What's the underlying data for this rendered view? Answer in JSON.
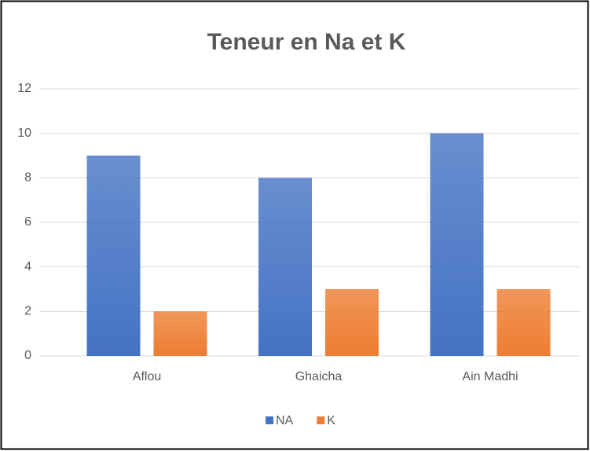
{
  "chart_data": {
    "type": "bar",
    "title": "Teneur en Na et K",
    "categories": [
      "Aflou",
      "Ghaicha",
      "Ain Madhi"
    ],
    "series": [
      {
        "name": "NA",
        "color": "#4472c4",
        "values": [
          9,
          8,
          10
        ]
      },
      {
        "name": "K",
        "color": "#ed7d31",
        "values": [
          2,
          3,
          3
        ]
      }
    ],
    "ylim": [
      0,
      12
    ],
    "yticks": [
      0,
      2,
      4,
      6,
      8,
      10,
      12
    ],
    "grid": true,
    "legend": "bottom"
  }
}
